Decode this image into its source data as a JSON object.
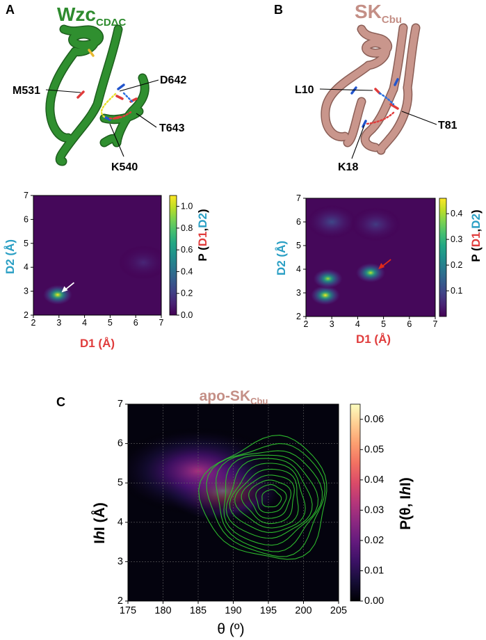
{
  "panels": [
    {
      "letter": "A"
    },
    {
      "letter": "B"
    },
    {
      "letter": "C"
    }
  ],
  "structures": [
    {
      "title": "Wzc",
      "title_sub": "CDΔC",
      "title_color": "#2e8b2e",
      "ribbon_color": "#2f8f2f",
      "residues": [
        "M531",
        "D642",
        "T643",
        "K540"
      ]
    },
    {
      "title": "SK",
      "title_sub": "Cbu",
      "title_color": "#c48f86",
      "ribbon_color": "#c9968c",
      "residues": [
        "L10",
        "T81",
        "K18"
      ]
    }
  ],
  "axis_text": {
    "d1": "D1 (Å)",
    "d2": "D2 (Å)",
    "p_prefix": "P (",
    "p_d1": "D1",
    "p_comma": ",",
    "p_d2": "D2",
    "p_suffix": ")",
    "theta": "θ (º)",
    "h_pre": "I",
    "h_italic": "h",
    "h_post": "I (Å)",
    "pc_pre": "P(θ, I",
    "pc_italic": "h",
    "pc_post": "I)",
    "d1_color": "#e03c3c",
    "d2_color": "#2a9fc4"
  },
  "panel_c_title": {
    "main": "apo-SK",
    "sub": "Cbu",
    "color": "#c48f86"
  },
  "chart_data": [
    {
      "type": "heatmap",
      "name": "Wzc",
      "xlabel": "D1 (Å)",
      "ylabel": "D2 (Å)",
      "xlim": [
        2,
        7
      ],
      "ylim": [
        2,
        7
      ],
      "xticks": [
        "2",
        "3",
        "4",
        "5",
        "6",
        "7"
      ],
      "yticks": [
        "2",
        "3",
        "4",
        "5",
        "6",
        "7"
      ],
      "colormap": "viridis",
      "colorbar": {
        "label": "P (D1,D2)",
        "range": [
          0,
          1.1
        ],
        "ticks": [
          "0.0",
          "0.2",
          "0.4",
          "0.6",
          "0.8",
          "1.0"
        ]
      },
      "peaks": [
        {
          "x": 2.95,
          "y": 2.85,
          "density": 1.1
        },
        {
          "x": 6.3,
          "y": 4.2,
          "density": 0.12
        }
      ],
      "annotation_arrow": {
        "color": "#ffffff",
        "points_to": [
          3.1,
          2.95
        ]
      }
    },
    {
      "type": "heatmap",
      "name": "SK",
      "xlabel": "D1 (Å)",
      "ylabel": "D2 (Å)",
      "xlim": [
        2,
        7
      ],
      "ylim": [
        2,
        7
      ],
      "xticks": [
        "2",
        "3",
        "4",
        "5",
        "6",
        "7"
      ],
      "yticks": [
        "2",
        "3",
        "4",
        "5",
        "6",
        "7"
      ],
      "colormap": "viridis",
      "colorbar": {
        "label": "P (D1,D2)",
        "range": [
          0,
          0.46
        ],
        "ticks": [
          "0.1",
          "0.2",
          "0.3",
          "0.4"
        ]
      },
      "peaks": [
        {
          "x": 2.75,
          "y": 2.9,
          "density": 0.46
        },
        {
          "x": 2.85,
          "y": 3.6,
          "density": 0.4
        },
        {
          "x": 4.5,
          "y": 3.85,
          "density": 0.42
        },
        {
          "x": 3.0,
          "y": 6.0,
          "density": 0.1
        },
        {
          "x": 4.7,
          "y": 5.9,
          "density": 0.08
        }
      ],
      "annotation_arrow": {
        "color": "#e02a1a",
        "points_to": [
          4.8,
          4.0
        ]
      }
    },
    {
      "type": "heatmap",
      "name": "apo-SKCbu",
      "xlabel": "θ (º)",
      "ylabel": "IhI (Å)",
      "xlim": [
        175,
        205
      ],
      "ylim": [
        2,
        7
      ],
      "xticks": [
        "175",
        "180",
        "185",
        "190",
        "195",
        "200",
        "205"
      ],
      "yticks": [
        "2",
        "3",
        "4",
        "5",
        "6",
        "7"
      ],
      "colormap": "magma",
      "grid": true,
      "colorbar": {
        "label": "P(θ, IhI)",
        "range": [
          0,
          0.065
        ],
        "ticks": [
          "0.00",
          "0.01",
          "0.02",
          "0.03",
          "0.04",
          "0.05",
          "0.06"
        ]
      },
      "peaks": [
        {
          "x": 188.5,
          "y": 4.8,
          "density": 0.065
        },
        {
          "x": 185,
          "y": 5.3,
          "density": 0.03
        }
      ],
      "contours": {
        "color": "#2db82d",
        "center": [
          195.5,
          4.6
        ],
        "levels": 11
      }
    }
  ]
}
